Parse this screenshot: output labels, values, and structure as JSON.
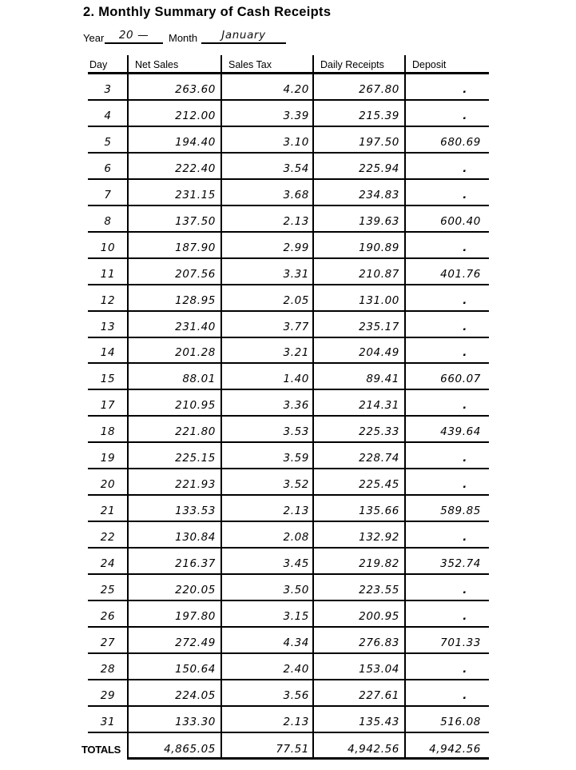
{
  "title": "2. Monthly Summary of Cash Receipts",
  "form": {
    "year_label": "Year",
    "year_value": "20 —",
    "month_label": "Month",
    "month_value": "January"
  },
  "table": {
    "headers": [
      "Day",
      "Net Sales",
      "Sales Tax",
      "Daily Receipts",
      "Deposit"
    ],
    "empty_deposit_mark": ".",
    "rows": [
      {
        "day": "3",
        "net_sales": "263.60",
        "sales_tax": "4.20",
        "daily_receipts": "267.80",
        "deposit": "."
      },
      {
        "day": "4",
        "net_sales": "212.00",
        "sales_tax": "3.39",
        "daily_receipts": "215.39",
        "deposit": "."
      },
      {
        "day": "5",
        "net_sales": "194.40",
        "sales_tax": "3.10",
        "daily_receipts": "197.50",
        "deposit": "680.69"
      },
      {
        "day": "6",
        "net_sales": "222.40",
        "sales_tax": "3.54",
        "daily_receipts": "225.94",
        "deposit": "."
      },
      {
        "day": "7",
        "net_sales": "231.15",
        "sales_tax": "3.68",
        "daily_receipts": "234.83",
        "deposit": "."
      },
      {
        "day": "8",
        "net_sales": "137.50",
        "sales_tax": "2.13",
        "daily_receipts": "139.63",
        "deposit": "600.40"
      },
      {
        "day": "10",
        "net_sales": "187.90",
        "sales_tax": "2.99",
        "daily_receipts": "190.89",
        "deposit": "."
      },
      {
        "day": "11",
        "net_sales": "207.56",
        "sales_tax": "3.31",
        "daily_receipts": "210.87",
        "deposit": "401.76"
      },
      {
        "day": "12",
        "net_sales": "128.95",
        "sales_tax": "2.05",
        "daily_receipts": "131.00",
        "deposit": "."
      },
      {
        "day": "13",
        "net_sales": "231.40",
        "sales_tax": "3.77",
        "daily_receipts": "235.17",
        "deposit": "."
      },
      {
        "day": "14",
        "net_sales": "201.28",
        "sales_tax": "3.21",
        "daily_receipts": "204.49",
        "deposit": "."
      },
      {
        "day": "15",
        "net_sales": "88.01",
        "sales_tax": "1.40",
        "daily_receipts": "89.41",
        "deposit": "660.07"
      },
      {
        "day": "17",
        "net_sales": "210.95",
        "sales_tax": "3.36",
        "daily_receipts": "214.31",
        "deposit": "."
      },
      {
        "day": "18",
        "net_sales": "221.80",
        "sales_tax": "3.53",
        "daily_receipts": "225.33",
        "deposit": "439.64"
      },
      {
        "day": "19",
        "net_sales": "225.15",
        "sales_tax": "3.59",
        "daily_receipts": "228.74",
        "deposit": "."
      },
      {
        "day": "20",
        "net_sales": "221.93",
        "sales_tax": "3.52",
        "daily_receipts": "225.45",
        "deposit": "."
      },
      {
        "day": "21",
        "net_sales": "133.53",
        "sales_tax": "2.13",
        "daily_receipts": "135.66",
        "deposit": "589.85"
      },
      {
        "day": "22",
        "net_sales": "130.84",
        "sales_tax": "2.08",
        "daily_receipts": "132.92",
        "deposit": "."
      },
      {
        "day": "24",
        "net_sales": "216.37",
        "sales_tax": "3.45",
        "daily_receipts": "219.82",
        "deposit": "352.74"
      },
      {
        "day": "25",
        "net_sales": "220.05",
        "sales_tax": "3.50",
        "daily_receipts": "223.55",
        "deposit": "."
      },
      {
        "day": "26",
        "net_sales": "197.80",
        "sales_tax": "3.15",
        "daily_receipts": "200.95",
        "deposit": "."
      },
      {
        "day": "27",
        "net_sales": "272.49",
        "sales_tax": "4.34",
        "daily_receipts": "276.83",
        "deposit": "701.33"
      },
      {
        "day": "28",
        "net_sales": "150.64",
        "sales_tax": "2.40",
        "daily_receipts": "153.04",
        "deposit": "."
      },
      {
        "day": "29",
        "net_sales": "224.05",
        "sales_tax": "3.56",
        "daily_receipts": "227.61",
        "deposit": "."
      },
      {
        "day": "31",
        "net_sales": "133.30",
        "sales_tax": "2.13",
        "daily_receipts": "135.43",
        "deposit": "516.08"
      }
    ],
    "totals": {
      "label": "TOTALS",
      "net_sales": "4,865.05",
      "sales_tax": "77.51",
      "daily_receipts": "4,942.56",
      "deposit": "4,942.56"
    }
  },
  "colors": {
    "ink": "#000000",
    "background": "#ffffff"
  }
}
